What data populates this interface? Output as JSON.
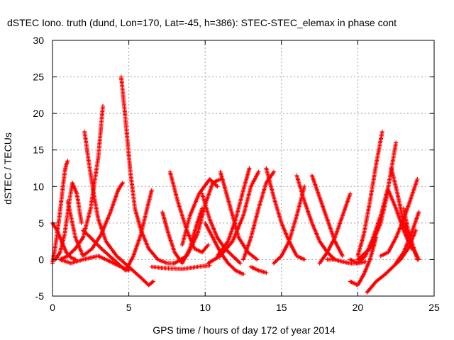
{
  "chart_data": {
    "type": "scatter",
    "title": "dSTEC Iono. truth (dund, Lon=170, Lat=-45, h=386): STEC-STEC_elemax in phase cont",
    "xlabel": "GPS time / hours of day 172 of year 2014",
    "ylabel": "dSTEC  / TECUs",
    "xlim": [
      0,
      25
    ],
    "ylim": [
      -5,
      30
    ],
    "xticks": [
      0,
      5,
      10,
      15,
      20,
      25
    ],
    "yticks": [
      -5,
      0,
      5,
      10,
      15,
      20,
      25,
      30
    ],
    "grid": true,
    "legend": "none",
    "marker": "+",
    "color": "#ff0000",
    "series": [
      {
        "x": [
          0.0,
          0.2,
          0.4,
          0.6,
          0.8,
          0.9,
          1.0
        ],
        "y": [
          -0.5,
          2.0,
          5.0,
          8.5,
          12.0,
          13.0,
          13.5
        ]
      },
      {
        "x": [
          0.0,
          0.3,
          0.6,
          0.9,
          1.2,
          1.5
        ],
        "y": [
          5.0,
          4.0,
          2.5,
          1.0,
          0.3,
          0.0
        ]
      },
      {
        "x": [
          0.2,
          0.5,
          0.8,
          1.0,
          1.3,
          1.6,
          1.9
        ],
        "y": [
          0.0,
          1.0,
          3.5,
          6.5,
          10.5,
          9.0,
          5.0
        ]
      },
      {
        "x": [
          0.5,
          1.0,
          1.5,
          2.0,
          2.5,
          3.0,
          3.3
        ],
        "y": [
          0.0,
          0.5,
          1.5,
          3.0,
          7.0,
          14.0,
          21.0
        ]
      },
      {
        "x": [
          2.1,
          2.4,
          2.7,
          3.0,
          3.5,
          4.2,
          5.0,
          5.8,
          6.3,
          6.6
        ],
        "y": [
          17.5,
          13.0,
          9.0,
          5.5,
          2.5,
          0.5,
          -1.0,
          -2.5,
          -3.5,
          -3.0
        ]
      },
      {
        "x": [
          1.0,
          1.5,
          2.0,
          2.6,
          3.2,
          3.8,
          4.3,
          4.6
        ],
        "y": [
          8.0,
          3.0,
          0.5,
          1.5,
          3.5,
          6.5,
          9.5,
          10.5
        ]
      },
      {
        "x": [
          0.5,
          1.2,
          2.0,
          3.0,
          4.0,
          4.7,
          5.0
        ],
        "y": [
          0.0,
          -0.5,
          0.0,
          0.5,
          -0.5,
          -1.2,
          -1.5
        ]
      },
      {
        "x": [
          4.5,
          4.7,
          4.9,
          5.1,
          5.4,
          5.8,
          6.3,
          6.9,
          7.5,
          8.0
        ],
        "y": [
          25.0,
          21.0,
          16.5,
          12.0,
          7.0,
          4.0,
          1.5,
          0.0,
          -0.5,
          -0.5
        ]
      },
      {
        "x": [
          2.0,
          2.5,
          3.2,
          4.0,
          4.8,
          5.3,
          5.8,
          6.2,
          6.5
        ],
        "y": [
          4.0,
          3.0,
          1.5,
          0.0,
          -1.5,
          0.5,
          3.5,
          7.0,
          9.5
        ]
      },
      {
        "x": [
          6.5,
          7.5,
          8.5,
          9.5,
          10.3
        ],
        "y": [
          -1.0,
          -1.2,
          -1.3,
          -1.0,
          -0.8
        ]
      },
      {
        "x": [
          7.2,
          7.6,
          8.0,
          8.5,
          9.0,
          9.4,
          9.8
        ],
        "y": [
          6.5,
          3.5,
          1.0,
          -0.5,
          1.5,
          4.5,
          7.0
        ]
      },
      {
        "x": [
          7.7,
          8.2,
          8.8,
          9.3,
          9.8,
          10.2
        ],
        "y": [
          12.0,
          8.0,
          4.0,
          1.5,
          1.0,
          2.0
        ]
      },
      {
        "x": [
          8.0,
          8.8,
          9.5,
          10.0,
          10.5,
          11.0
        ],
        "y": [
          -0.5,
          0.5,
          3.5,
          7.5,
          10.5,
          11.0
        ]
      },
      {
        "x": [
          8.5,
          9.0,
          9.6,
          10.3,
          10.8
        ],
        "y": [
          2.0,
          6.0,
          9.0,
          11.0,
          10.0
        ]
      },
      {
        "x": [
          9.8,
          10.3,
          10.8,
          11.3,
          11.8,
          12.3
        ],
        "y": [
          9.0,
          5.5,
          3.0,
          1.5,
          0.5,
          -0.5
        ]
      },
      {
        "x": [
          10.0,
          10.5,
          11.0,
          11.5,
          12.0,
          12.5
        ],
        "y": [
          5.0,
          3.0,
          1.0,
          -0.5,
          -1.5,
          -2.0
        ]
      },
      {
        "x": [
          10.2,
          11.0,
          11.8,
          12.5,
          13.0,
          13.5
        ],
        "y": [
          -0.5,
          0.5,
          2.5,
          6.0,
          10.0,
          12.0
        ]
      },
      {
        "x": [
          10.8,
          11.5,
          12.0,
          12.5,
          12.9
        ],
        "y": [
          0.5,
          2.5,
          5.5,
          9.5,
          12.5
        ]
      },
      {
        "x": [
          11.0,
          11.4,
          11.8,
          12.2,
          12.8,
          13.4
        ],
        "y": [
          12.0,
          9.0,
          6.0,
          3.0,
          1.0,
          0.0
        ]
      },
      {
        "x": [
          12.5,
          13.0,
          13.5,
          14.0,
          14.5
        ],
        "y": [
          0.0,
          3.0,
          7.0,
          10.5,
          12.0
        ]
      },
      {
        "x": [
          13.0,
          13.5,
          14.0
        ],
        "y": [
          -1.0,
          -1.5,
          -1.8
        ]
      },
      {
        "x": [
          14.0,
          14.5,
          15.0,
          15.5,
          16.0,
          16.5
        ],
        "y": [
          12.5,
          8.5,
          5.0,
          2.5,
          0.5,
          0.0
        ]
      },
      {
        "x": [
          14.5,
          15.0,
          15.5,
          16.0,
          16.5
        ],
        "y": [
          -0.5,
          0.5,
          2.5,
          6.0,
          10.0
        ]
      },
      {
        "x": [
          16.0,
          16.5,
          17.0,
          17.5,
          18.0,
          18.5
        ],
        "y": [
          11.5,
          8.0,
          5.0,
          2.5,
          1.0,
          0.0
        ]
      },
      {
        "x": [
          17.0,
          17.5,
          18.0,
          18.5,
          19.0
        ],
        "y": [
          11.5,
          8.5,
          5.5,
          2.5,
          0.5
        ]
      },
      {
        "x": [
          17.5,
          18.0,
          18.5,
          19.0,
          19.5
        ],
        "y": [
          -0.5,
          1.0,
          3.0,
          6.0,
          9.0
        ]
      },
      {
        "x": [
          18.0,
          18.5,
          19.0,
          19.5,
          20.0,
          20.5
        ],
        "y": [
          0.0,
          0.0,
          -0.3,
          -0.5,
          -0.5,
          -0.3
        ]
      },
      {
        "x": [
          19.5,
          20.0,
          20.5,
          21.0,
          21.5,
          22.0,
          22.5
        ],
        "y": [
          0.0,
          -0.5,
          0.5,
          3.0,
          6.0,
          10.0,
          16.0
        ]
      },
      {
        "x": [
          19.5,
          20.0,
          20.4,
          20.8,
          21.2
        ],
        "y": [
          -3.0,
          -3.5,
          -2.0,
          0.0,
          3.0
        ]
      },
      {
        "x": [
          20.0,
          20.4,
          20.8,
          21.2,
          21.6
        ],
        "y": [
          0.5,
          3.5,
          8.0,
          13.0,
          17.5
        ]
      },
      {
        "x": [
          20.6,
          21.2,
          21.8,
          22.3,
          22.8,
          23.3,
          23.8
        ],
        "y": [
          -4.5,
          -3.0,
          -2.0,
          -1.0,
          0.0,
          1.5,
          4.0
        ]
      },
      {
        "x": [
          20.0,
          20.8,
          21.5,
          22.0,
          22.5,
          23.0,
          23.5
        ],
        "y": [
          0.0,
          1.5,
          5.0,
          9.5,
          7.0,
          4.0,
          1.5
        ]
      },
      {
        "x": [
          21.5,
          22.0,
          22.5,
          23.0,
          23.5,
          23.9
        ],
        "y": [
          0.5,
          1.0,
          3.0,
          5.5,
          8.5,
          11.0
        ]
      },
      {
        "x": [
          22.2,
          22.6,
          23.0,
          23.5,
          24.0
        ],
        "y": [
          12.5,
          9.0,
          5.0,
          2.0,
          0.0
        ]
      },
      {
        "x": [
          22.5,
          23.0,
          23.5,
          24.0
        ],
        "y": [
          -0.5,
          1.0,
          3.5,
          6.5
        ]
      },
      {
        "x": [
          23.0,
          23.3,
          23.6,
          23.9
        ],
        "y": [
          7.0,
          4.0,
          2.0,
          0.0
        ]
      }
    ]
  }
}
